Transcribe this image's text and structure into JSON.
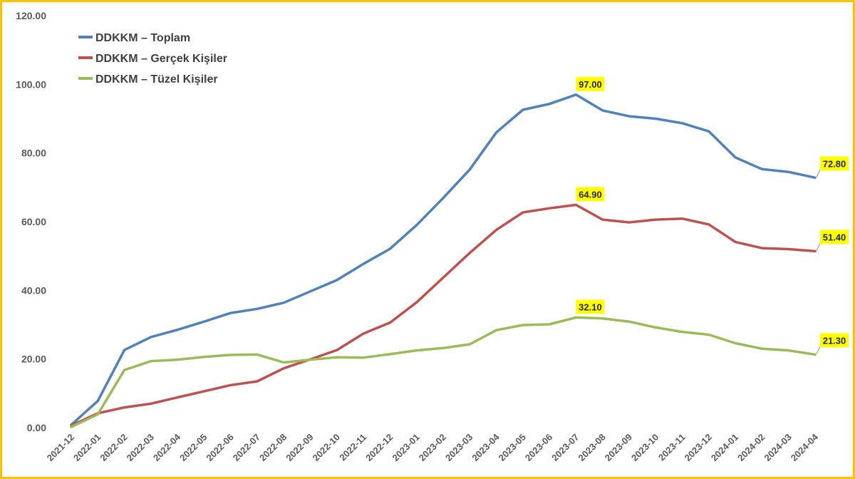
{
  "chart_data": {
    "type": "line",
    "title": "",
    "xlabel": "",
    "ylabel": "",
    "ylim": [
      0,
      120
    ],
    "yticks": [
      "0.00",
      "20.00",
      "40.00",
      "60.00",
      "80.00",
      "100.00",
      "120.00"
    ],
    "grid": false,
    "legend_position": "top-left",
    "categories": [
      "2021-12",
      "2022-01",
      "2022-02",
      "2022-03",
      "2022-04",
      "2022-05",
      "2022-06",
      "2022-07",
      "2022-08",
      "2022-09",
      "2022-10",
      "2022-11",
      "2022-12",
      "2023-01",
      "2023-02",
      "2023-03",
      "2023-04",
      "2023-05",
      "2023-06",
      "2023-07",
      "2023-08",
      "2023-09",
      "2023-10",
      "2023-11",
      "2023-12",
      "2024-01",
      "2024-02",
      "2024-03",
      "2024-04"
    ],
    "series": [
      {
        "name": "DDKKM – Toplam",
        "color": "#4F81BD",
        "values": [
          0.8,
          7.8,
          22.6,
          26.4,
          28.5,
          30.9,
          33.4,
          34.6,
          36.4,
          39.7,
          43.0,
          47.7,
          52.1,
          59.0,
          66.9,
          75.2,
          86.0,
          92.6,
          94.3,
          97.0,
          92.4,
          90.7,
          90.0,
          88.7,
          86.3,
          78.7,
          75.3,
          74.5,
          72.8
        ],
        "labels": [
          {
            "index": 19,
            "text": "97.00"
          },
          {
            "index": 28,
            "text": "72.80"
          }
        ]
      },
      {
        "name": "DDKKM – Gerçek Kişiler",
        "color": "#C0504D",
        "values": [
          0.6,
          4.2,
          5.9,
          7.0,
          8.8,
          10.6,
          12.4,
          13.5,
          17.3,
          19.9,
          22.6,
          27.4,
          30.6,
          36.5,
          43.7,
          50.9,
          57.6,
          62.7,
          63.9,
          64.9,
          60.6,
          59.8,
          60.6,
          60.9,
          59.2,
          54.1,
          52.3,
          52.0,
          51.4
        ],
        "labels": [
          {
            "index": 19,
            "text": "64.90"
          },
          {
            "index": 28,
            "text": "51.40"
          }
        ]
      },
      {
        "name": "DDKKM – Tüzel Kişiler",
        "color": "#9BBB59",
        "values": [
          0.2,
          3.9,
          16.8,
          19.4,
          19.8,
          20.6,
          21.2,
          21.3,
          19.0,
          19.8,
          20.5,
          20.4,
          21.4,
          22.5,
          23.2,
          24.3,
          28.4,
          29.9,
          30.1,
          32.1,
          31.8,
          30.9,
          29.2,
          27.9,
          27.1,
          24.6,
          23.0,
          22.5,
          21.3
        ],
        "labels": [
          {
            "index": 19,
            "text": "32.10"
          },
          {
            "index": 28,
            "text": "21.30"
          }
        ]
      }
    ]
  }
}
